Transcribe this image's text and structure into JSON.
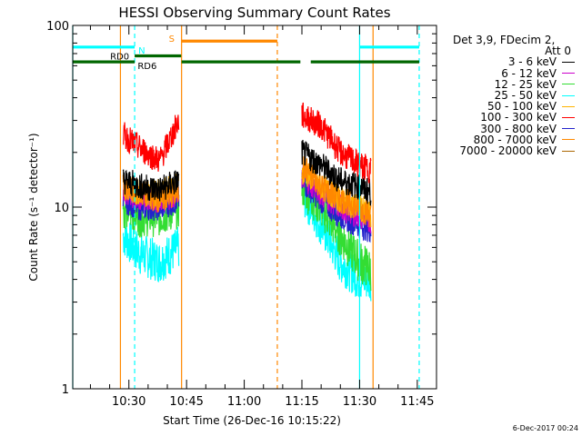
{
  "chart_data": {
    "type": "line",
    "title": "HESSI Observing Summary Count Rates",
    "xlabel": "Start Time (26-Dec-16 10:15:22)",
    "ylabel": "Count Rate (s⁻¹ detector⁻¹)",
    "yscale": "log",
    "ylim": [
      1,
      100
    ],
    "xlim_minutes": [
      615.4,
      710
    ],
    "y_ticks": [
      "1",
      "10",
      "100"
    ],
    "x_ticks": [
      {
        "label": "10:30",
        "minute": 630
      },
      {
        "label": "10:45",
        "minute": 645
      },
      {
        "label": "11:00",
        "minute": 660
      },
      {
        "label": "11:15",
        "minute": 675
      },
      {
        "label": "11:30",
        "minute": 690
      },
      {
        "label": "11:45",
        "minute": 705
      }
    ],
    "legend_header": [
      "Det 3,9, FDecim 2,",
      "Att 0"
    ],
    "series": [
      {
        "name": "3 - 6 keV",
        "color": "#000000",
        "seg1": [
          [
            628.5,
            14
          ],
          [
            633,
            13
          ],
          [
            638,
            12.5
          ],
          [
            643,
            14
          ]
        ],
        "seg2": [
          [
            675,
            20
          ],
          [
            680,
            17
          ],
          [
            685,
            14
          ],
          [
            690,
            13
          ],
          [
            693,
            12
          ]
        ]
      },
      {
        "name": "6 - 12 keV",
        "color": "#cc00cc",
        "seg1": [
          [
            628.5,
            12
          ],
          [
            633,
            11
          ],
          [
            638,
            11
          ],
          [
            643,
            12
          ]
        ],
        "seg2": [
          [
            675,
            15
          ],
          [
            680,
            12
          ],
          [
            685,
            10
          ],
          [
            690,
            9
          ],
          [
            693,
            8.5
          ]
        ]
      },
      {
        "name": "12 - 25 keV",
        "color": "#33dd33",
        "seg1": [
          [
            628.5,
            10
          ],
          [
            633,
            9
          ],
          [
            638,
            9
          ],
          [
            643,
            10
          ]
        ],
        "seg2": [
          [
            675,
            13
          ],
          [
            680,
            10
          ],
          [
            685,
            7
          ],
          [
            690,
            5
          ],
          [
            693,
            4.5
          ]
        ]
      },
      {
        "name": "25 - 50 keV",
        "color": "#00ffff",
        "seg1": [
          [
            628.5,
            7
          ],
          [
            633,
            5.5
          ],
          [
            638,
            5
          ],
          [
            643,
            6
          ]
        ],
        "seg2": [
          [
            675,
            12
          ],
          [
            680,
            8
          ],
          [
            685,
            5
          ],
          [
            690,
            4
          ],
          [
            693,
            4
          ]
        ]
      },
      {
        "name": "50 - 100 keV",
        "color": "#ffb400",
        "seg1": [
          [
            628.5,
            13
          ],
          [
            633,
            12
          ],
          [
            638,
            12
          ],
          [
            643,
            13
          ]
        ],
        "seg2": [
          [
            675,
            16
          ],
          [
            680,
            13
          ],
          [
            685,
            11
          ],
          [
            690,
            10
          ],
          [
            693,
            9
          ]
        ]
      },
      {
        "name": "100 - 300 keV",
        "color": "#ff0000",
        "seg1": [
          [
            628.5,
            25
          ],
          [
            633,
            21
          ],
          [
            638,
            18
          ],
          [
            643,
            30
          ]
        ],
        "seg2": [
          [
            675,
            32
          ],
          [
            680,
            28
          ],
          [
            685,
            20
          ],
          [
            690,
            17
          ],
          [
            693,
            16
          ]
        ]
      },
      {
        "name": "300 - 800 keV",
        "color": "#2222cc",
        "seg1": [
          [
            628.5,
            11
          ],
          [
            633,
            10
          ],
          [
            638,
            10
          ],
          [
            643,
            11
          ]
        ],
        "seg2": [
          [
            675,
            14
          ],
          [
            680,
            11
          ],
          [
            685,
            9
          ],
          [
            690,
            8
          ],
          [
            693,
            7.5
          ]
        ]
      },
      {
        "name": "800 - 7000 keV",
        "color": "#ff8800",
        "seg1": [
          [
            628.5,
            13
          ],
          [
            633,
            12
          ],
          [
            638,
            11
          ],
          [
            643,
            12
          ]
        ],
        "seg2": [
          [
            675,
            17
          ],
          [
            680,
            13
          ],
          [
            685,
            11
          ],
          [
            690,
            10
          ],
          [
            693,
            9
          ]
        ]
      },
      {
        "name": "7000 - 20000 keV",
        "color": "#aa6600",
        "seg1": [],
        "seg2": []
      }
    ],
    "state_bars": [
      {
        "label": "N",
        "color": "#00ffff",
        "y": 76,
        "segments": [
          [
            615.4,
            631.5
          ],
          [
            690,
            705.5
          ]
        ]
      },
      {
        "label": "S",
        "color": "#ff8800",
        "y": 82,
        "segments": [
          [
            643.7,
            668.6
          ]
        ]
      },
      {
        "label": "RD0",
        "color": "#006600",
        "y": 68,
        "segments": [
          [
            631.5,
            643.6
          ]
        ]
      },
      {
        "label": "RD6",
        "color": "#006600",
        "y": 63,
        "segments": [
          [
            615.4,
            631.5
          ],
          [
            643.7,
            668.6
          ],
          [
            668.6,
            674.6
          ],
          [
            677.3,
            705.5
          ]
        ]
      }
    ],
    "vlines": [
      {
        "minute": 615.4,
        "color": "#00ffff",
        "style": "solid"
      },
      {
        "minute": 627.8,
        "color": "#ff8800",
        "style": "solid"
      },
      {
        "minute": 631.5,
        "color": "#00ffff",
        "style": "dashed"
      },
      {
        "minute": 643.7,
        "color": "#ff8800",
        "style": "solid"
      },
      {
        "minute": 668.6,
        "color": "#ff8800",
        "style": "dashed"
      },
      {
        "minute": 690,
        "color": "#00ffff",
        "style": "solid"
      },
      {
        "minute": 693.5,
        "color": "#ff8800",
        "style": "solid"
      },
      {
        "minute": 705.5,
        "color": "#00ffff",
        "style": "dashed"
      }
    ]
  },
  "footer": {
    "timestamp": "6-Dec-2017 00:24"
  }
}
